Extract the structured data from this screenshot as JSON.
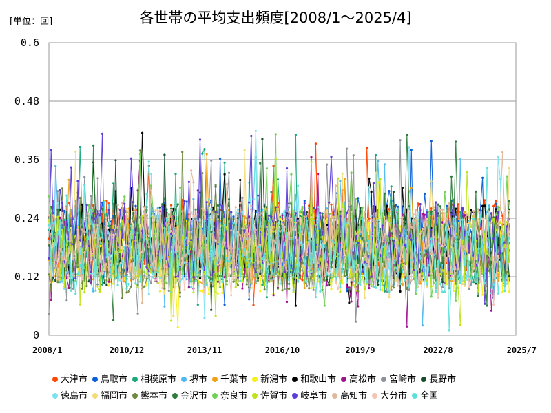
{
  "unit_label": "[単位：回]",
  "chart_data": {
    "type": "line",
    "title": "各世帯の平均支出頻度[2008/1～2025/4]",
    "xlabel": "",
    "ylabel": "",
    "ylim": [
      0,
      0.6
    ],
    "y_ticks": [
      "0",
      "0.12",
      "0.24",
      "0.36",
      "0.48",
      "0.6"
    ],
    "x_ticks": [
      "2008/1",
      "2010/12",
      "2013/11",
      "2016/10",
      "2019/9",
      "2022/8",
      "2025/7"
    ],
    "x_start": "2008/1",
    "x_end": "2025/7",
    "last_data": "2025/4",
    "grid": true,
    "legend_position": "bottom",
    "series": [
      {
        "name": "大津市",
        "color": "#ff4500"
      },
      {
        "name": "鳥取市",
        "color": "#0a5fd9"
      },
      {
        "name": "相模原市",
        "color": "#18a87a"
      },
      {
        "name": "堺市",
        "color": "#4fb8ee"
      },
      {
        "name": "千葉市",
        "color": "#f0a010"
      },
      {
        "name": "新潟市",
        "color": "#f7ef1a"
      },
      {
        "name": "和歌山市",
        "color": "#000000"
      },
      {
        "name": "高松市",
        "color": "#a0138f"
      },
      {
        "name": "宮崎市",
        "color": "#8c9299"
      },
      {
        "name": "長野市",
        "color": "#174d2c"
      },
      {
        "name": "徳島市",
        "color": "#7ee1ee"
      },
      {
        "name": "福岡市",
        "color": "#f2dc7a"
      },
      {
        "name": "熊本市",
        "color": "#6e8a3e"
      },
      {
        "name": "金沢市",
        "color": "#2e7d3c"
      },
      {
        "name": "奈良市",
        "color": "#72d155"
      },
      {
        "name": "佐賀市",
        "color": "#bde31a"
      },
      {
        "name": "岐阜市",
        "color": "#5b3cd6"
      },
      {
        "name": "高知市",
        "color": "#e0b89a"
      },
      {
        "name": "大分市",
        "color": "#f2c4b4"
      },
      {
        "name": "全国",
        "color": "#5ee0da"
      }
    ],
    "legend_rows": [
      [
        0,
        1,
        2,
        3,
        4,
        5,
        6,
        7,
        8,
        9
      ],
      [
        10,
        11,
        12,
        13,
        14,
        15,
        16,
        17,
        18,
        19
      ]
    ]
  }
}
